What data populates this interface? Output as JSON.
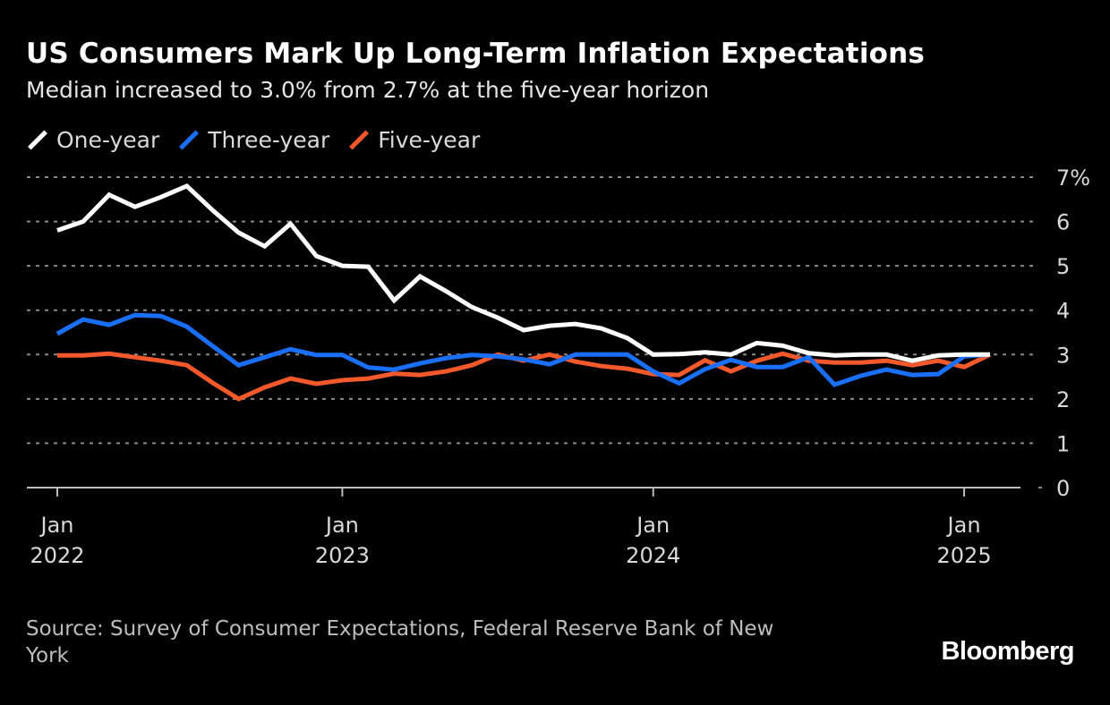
{
  "title": "US Consumers Mark Up Long-Term Inflation Expectations",
  "subtitle": "Median increased to 3.0% from 2.7% at the five-year horizon",
  "source": "Source: Survey of Consumer Expectations, Federal Reserve Bank of New York",
  "logo": "Bloomberg",
  "chart_data": {
    "type": "line",
    "title": "US Consumers Mark Up Long-Term Inflation Expectations",
    "subtitle": "Median increased to 3.0% from 2.7% at the five-year horizon",
    "x_start": "Jan 2022",
    "x_end": "Jan 2025",
    "x_frequency": "monthly",
    "x_ticks": [
      {
        "index": 0,
        "line1": "Jan",
        "line2": "2022"
      },
      {
        "index": 11,
        "line1": "Jan",
        "line2": "2023"
      },
      {
        "index": 23,
        "line1": "Jan",
        "line2": "2024"
      },
      {
        "index": 35,
        "line1": "Jan",
        "line2": "2025"
      }
    ],
    "y_ticks": [
      "0",
      "1",
      "2",
      "3",
      "4",
      "5",
      "6",
      "7%"
    ],
    "ylim": [
      0,
      7
    ],
    "y_axis_side": "right",
    "grid": "horizontal dotted",
    "legend": "top-left",
    "series": [
      {
        "name": "One-year",
        "color": "#ffffff",
        "values": [
          5.8,
          6.0,
          6.6,
          6.33,
          6.55,
          6.8,
          6.25,
          5.75,
          5.44,
          5.95,
          5.22,
          5.0,
          4.98,
          4.22,
          4.76,
          4.43,
          4.07,
          3.83,
          3.55,
          3.65,
          3.69,
          3.59,
          3.37,
          3.0,
          3.01,
          3.05,
          3.0,
          3.26,
          3.2,
          3.03,
          2.98,
          3.0,
          3.0,
          2.86,
          2.98,
          3.0,
          3.0
        ]
      },
      {
        "name": "Three-year",
        "color": "#1a6ffb",
        "values": [
          3.47,
          3.79,
          3.67,
          3.89,
          3.87,
          3.63,
          3.19,
          2.76,
          2.94,
          3.12,
          2.99,
          2.99,
          2.71,
          2.66,
          2.8,
          2.92,
          2.99,
          2.96,
          2.89,
          2.78,
          3.0,
          3.0,
          3.0,
          2.62,
          2.35,
          2.67,
          2.88,
          2.72,
          2.72,
          2.94,
          2.32,
          2.52,
          2.66,
          2.54,
          2.56,
          2.96,
          3.0
        ]
      },
      {
        "name": "Five-year",
        "color": "#f4592b",
        "values": [
          2.98,
          2.98,
          3.02,
          2.94,
          2.86,
          2.76,
          2.36,
          2.0,
          2.26,
          2.46,
          2.34,
          2.42,
          2.46,
          2.57,
          2.54,
          2.62,
          2.76,
          3.0,
          2.86,
          3.0,
          2.84,
          2.74,
          2.68,
          2.56,
          2.54,
          2.87,
          2.62,
          2.86,
          3.02,
          2.86,
          2.82,
          2.82,
          2.86,
          2.76,
          2.86,
          2.72,
          3.0
        ]
      }
    ]
  }
}
